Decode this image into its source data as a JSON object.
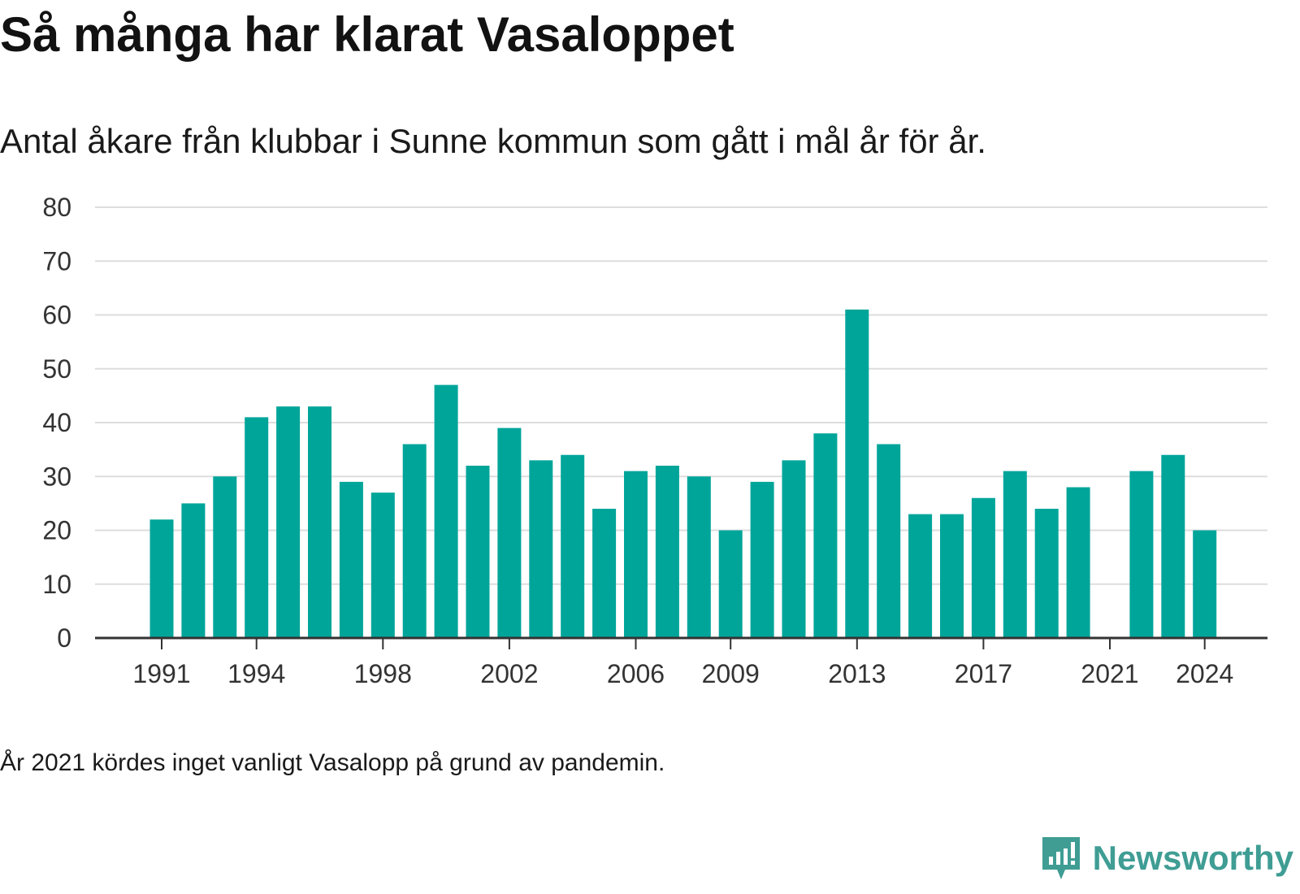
{
  "title": "Så många har klarat Vasaloppet",
  "subtitle": "Antal åkare från klubbar i Sunne kommun som gått i mål år för år.",
  "footnote": "År 2021 kördes inget vanligt Vasalopp på grund av pandemin.",
  "brand": {
    "name": "Newsworthy",
    "icon": "newsworthy-logo-icon"
  },
  "colors": {
    "bar": "#00a59a",
    "grid": "#dddddd",
    "axis": "#333333",
    "brand": "#3f9d94"
  },
  "chart_data": {
    "type": "bar",
    "title": "Så många har klarat Vasaloppet",
    "subtitle": "Antal åkare från klubbar i Sunne kommun som gått i mål år för år.",
    "xlabel": "",
    "ylabel": "",
    "ylim": [
      0,
      80
    ],
    "yticks": [
      0,
      10,
      20,
      30,
      40,
      50,
      60,
      70,
      80
    ],
    "xticks": [
      1991,
      1994,
      1998,
      2002,
      2006,
      2009,
      2013,
      2017,
      2021,
      2024
    ],
    "grid": true,
    "categories": [
      1991,
      1992,
      1993,
      1994,
      1995,
      1996,
      1997,
      1998,
      1999,
      2000,
      2001,
      2002,
      2003,
      2004,
      2005,
      2006,
      2007,
      2008,
      2009,
      2010,
      2011,
      2012,
      2013,
      2014,
      2015,
      2016,
      2017,
      2018,
      2019,
      2020,
      2021,
      2022,
      2023,
      2024
    ],
    "values": [
      22,
      25,
      30,
      41,
      43,
      43,
      29,
      27,
      36,
      47,
      32,
      39,
      33,
      34,
      24,
      31,
      32,
      30,
      20,
      29,
      33,
      38,
      61,
      36,
      23,
      23,
      26,
      31,
      24,
      28,
      null,
      31,
      34,
      20
    ]
  }
}
